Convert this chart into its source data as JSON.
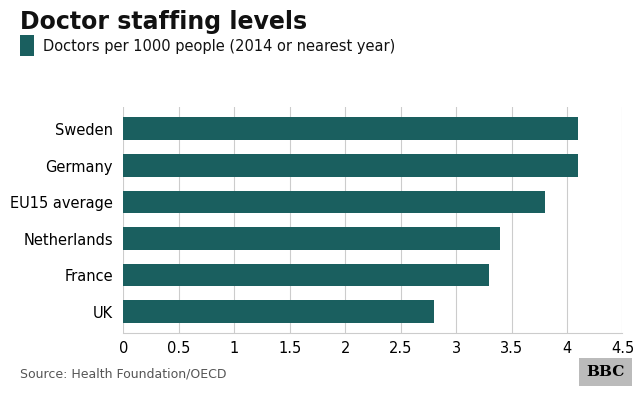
{
  "title": "Doctor staffing levels",
  "legend_label": "Doctors per 1000 people (2014 or nearest year)",
  "bar_color": "#1a5f5f",
  "background_color": "#ffffff",
  "source_text": "Source: Health Foundation/OECD",
  "bbc_text": "BBC",
  "categories": [
    "UK",
    "France",
    "Netherlands",
    "EU15 average",
    "Germany",
    "Sweden"
  ],
  "values": [
    2.8,
    3.3,
    3.4,
    3.8,
    4.1,
    4.1
  ],
  "xlim": [
    0,
    4.5
  ],
  "xticks": [
    0,
    0.5,
    1,
    1.5,
    2,
    2.5,
    3,
    3.5,
    4,
    4.5
  ],
  "xtick_labels": [
    "0",
    "0.5",
    "1",
    "1.5",
    "2",
    "2.5",
    "3",
    "3.5",
    "4",
    "4.5"
  ],
  "title_fontsize": 17,
  "legend_fontsize": 10.5,
  "tick_fontsize": 10.5,
  "source_fontsize": 9,
  "bar_height": 0.62,
  "grid_color": "#cccccc",
  "bbc_bg": "#bbbbbb"
}
